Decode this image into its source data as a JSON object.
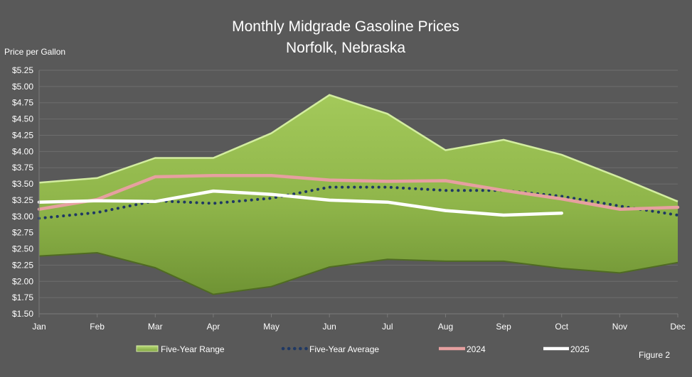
{
  "chart_data": {
    "type": "line",
    "title": "Monthly Midgrade Gasoline Prices",
    "subtitle": "Norfolk, Nebraska",
    "ylabel": "Price per Gallon",
    "xlabel": "",
    "figure_label": "Figure 2",
    "categories": [
      "Jan",
      "Feb",
      "Mar",
      "Apr",
      "May",
      "Jun",
      "Jul",
      "Aug",
      "Sep",
      "Oct",
      "Nov",
      "Dec"
    ],
    "ylim": [
      1.5,
      5.25
    ],
    "yticks": [
      1.5,
      1.75,
      2.0,
      2.25,
      2.5,
      2.75,
      3.0,
      3.25,
      3.5,
      3.75,
      4.0,
      4.25,
      4.5,
      4.75,
      5.0,
      5.25
    ],
    "ytick_labels": [
      "$1.50",
      "$1.75",
      "$2.00",
      "$2.25",
      "$2.50",
      "$2.75",
      "$3.00",
      "$3.25",
      "$3.50",
      "$3.75",
      "$4.00",
      "$4.25",
      "$4.50",
      "$4.75",
      "$5.00",
      "$5.25"
    ],
    "grid": true,
    "legend_position": "bottom",
    "range": {
      "name": "Five-Year Range",
      "low": [
        2.39,
        2.44,
        2.21,
        1.8,
        1.92,
        2.22,
        2.34,
        2.31,
        2.31,
        2.2,
        2.13,
        2.29
      ],
      "high": [
        3.52,
        3.59,
        3.9,
        3.9,
        4.28,
        4.87,
        4.58,
        4.02,
        4.18,
        3.95,
        3.6,
        3.23
      ],
      "color": "#8fb54a"
    },
    "series": [
      {
        "name": "Five-Year Average",
        "values": [
          2.97,
          3.06,
          3.24,
          3.2,
          3.28,
          3.45,
          3.45,
          3.4,
          3.4,
          3.31,
          3.16,
          3.02
        ],
        "color": "#1f3864",
        "style": "dotted"
      },
      {
        "name": "2024",
        "values": [
          3.11,
          3.26,
          3.61,
          3.63,
          3.63,
          3.56,
          3.54,
          3.55,
          3.4,
          3.27,
          3.11,
          3.14
        ],
        "color": "#e6a0a0",
        "style": "solid"
      },
      {
        "name": "2025",
        "values": [
          3.22,
          3.24,
          3.23,
          3.39,
          3.34,
          3.25,
          3.22,
          3.09,
          3.02,
          3.05,
          null,
          null
        ],
        "color": "#ffffff",
        "style": "solid"
      }
    ]
  }
}
